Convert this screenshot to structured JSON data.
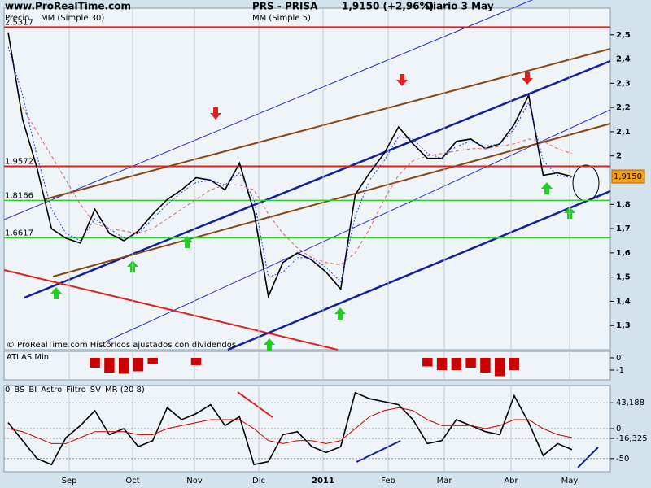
{
  "header": {
    "site": "www.ProRealTime.com",
    "symbol": "PRS - PRISA",
    "quote": "1,9150 (+2,96%)",
    "period": "Diario  3 May"
  },
  "chart_data": [
    {
      "type": "line",
      "legend": [
        "Precio",
        "MM (Simple 30)",
        "MM (Simple 5)"
      ],
      "footer": "© ProRealTime.com Históricos ajustados con dividendos",
      "ylim": [
        1.2,
        2.61
      ],
      "yticks": [
        {
          "value": 1.3,
          "label": "1,3"
        },
        {
          "value": 1.4,
          "label": "1,4"
        },
        {
          "value": 1.5,
          "label": "1,5"
        },
        {
          "value": 1.6,
          "label": "1,6"
        },
        {
          "value": 1.7,
          "label": "1,7"
        },
        {
          "value": 1.8,
          "label": "1,8"
        },
        2,
        {
          "value": 2.1,
          "label": "2,1"
        },
        {
          "value": 2.2,
          "label": "2,2"
        },
        {
          "value": 2.3,
          "label": "2,3"
        },
        {
          "value": 2.4,
          "label": "2,4"
        },
        {
          "value": 2.5,
          "label": "2,5"
        }
      ],
      "levels": [
        {
          "value": 2.5317,
          "label": "2,5317",
          "color": "#e02020"
        },
        {
          "value": 1.9572,
          "label": "1,9572",
          "color": "#e02020"
        },
        {
          "value": 1.8166,
          "label": "1,8166",
          "color": "#30d030"
        },
        {
          "value": 1.6617,
          "label": "1,6617",
          "color": "#30d030"
        }
      ],
      "last_price": {
        "value": 1.915,
        "label": "1,9150"
      },
      "x_labels": [
        "Sep",
        "Oct",
        "Nov",
        "Dic",
        "2011",
        "Feb",
        "Mar",
        "Abr",
        "May"
      ],
      "series": [
        {
          "name": "Precio",
          "color": "#000000",
          "values": [
            2.51,
            2.15,
            1.95,
            1.7,
            1.66,
            1.64,
            1.78,
            1.68,
            1.65,
            1.69,
            1.76,
            1.82,
            1.86,
            1.91,
            1.9,
            1.86,
            1.97,
            1.77,
            1.42,
            1.56,
            1.6,
            1.57,
            1.52,
            1.45,
            1.84,
            1.93,
            2.01,
            2.12,
            2.05,
            1.99,
            1.99,
            2.06,
            2.07,
            2.03,
            2.05,
            2.13,
            2.25,
            1.92,
            1.93,
            1.915
          ]
        },
        {
          "name": "MM (Simple 30)",
          "color": "#e06060",
          "values": [
            null,
            2.2,
            2.1,
            2.0,
            1.9,
            1.8,
            1.72,
            1.7,
            1.69,
            1.68,
            1.7,
            1.74,
            1.78,
            1.82,
            1.86,
            1.88,
            1.88,
            1.86,
            1.76,
            1.68,
            1.62,
            1.58,
            1.56,
            1.55,
            1.6,
            1.7,
            1.82,
            1.92,
            1.98,
            2.0,
            2.01,
            2.02,
            2.03,
            2.03,
            2.04,
            2.05,
            2.07,
            2.06,
            2.03,
            2.01
          ]
        },
        {
          "name": "MM (Simple 5)",
          "color": "#2040e0",
          "values": [
            2.45,
            2.25,
            2.0,
            1.78,
            1.68,
            1.65,
            1.74,
            1.7,
            1.66,
            1.68,
            1.74,
            1.8,
            1.85,
            1.89,
            1.9,
            1.88,
            1.93,
            1.82,
            1.5,
            1.52,
            1.58,
            1.58,
            1.54,
            1.48,
            1.75,
            1.9,
            1.98,
            2.08,
            2.07,
            2.01,
            1.99,
            2.04,
            2.06,
            2.04,
            2.05,
            2.11,
            2.22,
            1.98,
            1.92,
            1.91
          ]
        }
      ]
    },
    {
      "type": "bar",
      "title": "ATLAS Mini",
      "color": "#cc0000",
      "ylim": [
        -1.8,
        0.53
      ],
      "yticks": [
        0,
        -1
      ],
      "values": [
        0,
        0,
        0,
        0,
        0,
        0,
        -0.8,
        -1.2,
        -1.3,
        -1.1,
        -0.5,
        0,
        0,
        -0.6,
        0,
        0,
        0,
        0,
        0,
        0,
        0,
        0,
        0,
        0,
        0,
        0,
        0,
        0,
        0,
        -0.7,
        -1.0,
        -1.0,
        -0.8,
        -1.2,
        -1.5,
        -1.0,
        0,
        0,
        0,
        0
      ]
    },
    {
      "type": "line",
      "legend": [
        {
          "name": "0",
          "color": "#808080"
        },
        {
          "name": "BS",
          "color": "#000000"
        },
        {
          "name": "BI",
          "color": "#000000"
        },
        {
          "name": "Astro",
          "color": "#e08040"
        },
        {
          "name": "Filtro",
          "color": "#2020c0"
        },
        {
          "name": "SV",
          "color": "#000000"
        },
        {
          "name": "MR (20 8)",
          "color": "#cc0000"
        }
      ],
      "ylim": [
        -72,
        72
      ],
      "yticks": [
        {
          "value": 43.188,
          "label": "43,188"
        },
        0,
        {
          "value": -16.325,
          "label": "-16,325"
        },
        -50
      ],
      "series": [
        {
          "name": "0",
          "color": "#000000",
          "values": [
            10,
            -20,
            -50,
            -60,
            -15,
            5,
            30,
            -10,
            0,
            -30,
            -20,
            35,
            15,
            25,
            40,
            5,
            20,
            -60,
            -55,
            -10,
            -5,
            -30,
            -40,
            -30,
            60,
            50,
            45,
            40,
            15,
            -25,
            -20,
            15,
            5,
            -5,
            -10,
            55,
            10,
            -45,
            -25,
            -35
          ]
        },
        {
          "name": "MR (20 8)",
          "color": "#cc0000",
          "values": [
            0,
            -5,
            -15,
            -25,
            -25,
            -15,
            -5,
            -5,
            -5,
            -10,
            -10,
            0,
            5,
            10,
            15,
            15,
            15,
            0,
            -20,
            -25,
            -20,
            -20,
            -25,
            -20,
            0,
            20,
            30,
            35,
            30,
            15,
            5,
            5,
            5,
            0,
            5,
            15,
            15,
            0,
            -10,
            -15
          ]
        }
      ]
    }
  ]
}
